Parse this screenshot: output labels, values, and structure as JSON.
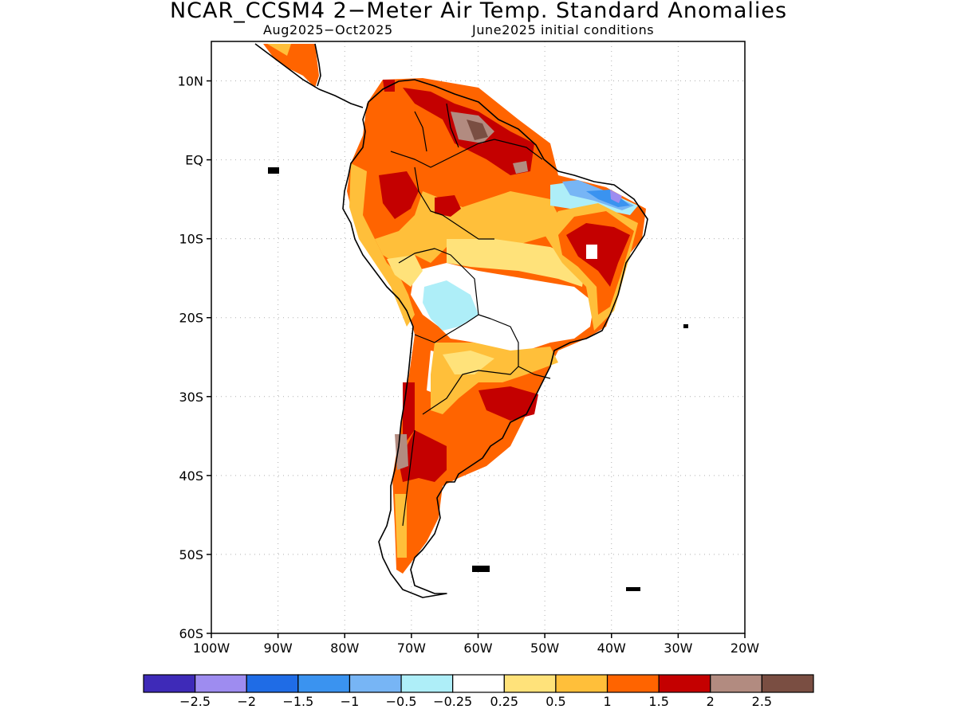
{
  "title": "NCAR_CCSM4 2−Meter Air Temp. Standard Anomalies",
  "subtitle_left": "Aug2025−Oct2025",
  "subtitle_right": "June2025 initial conditions",
  "lat_labels": [
    "10N",
    "EQ",
    "10S",
    "20S",
    "30S",
    "40S",
    "50S",
    "60S"
  ],
  "lon_labels": [
    "100W",
    "90W",
    "80W",
    "70W",
    "60W",
    "50W",
    "40W",
    "30W",
    "20W"
  ],
  "map_extent": {
    "lon": [
      -100,
      -20
    ],
    "lat": [
      -60,
      15
    ]
  },
  "colorbar": {
    "colors": [
      "#3e2ab8",
      "#9e8cf0",
      "#1f6ce6",
      "#3a93f0",
      "#77b5f5",
      "#aeeef8",
      "#ffffff",
      "#ffe27a",
      "#ffbf3a",
      "#ff6400",
      "#c40000",
      "#b28b80",
      "#7a4e42"
    ],
    "tick_labels": [
      "−2.5",
      "−2",
      "−1.5",
      "−1",
      "−0.5",
      "−0.25",
      "0.25",
      "0.5",
      "1",
      "1.5",
      "2",
      "2.5"
    ]
  }
}
